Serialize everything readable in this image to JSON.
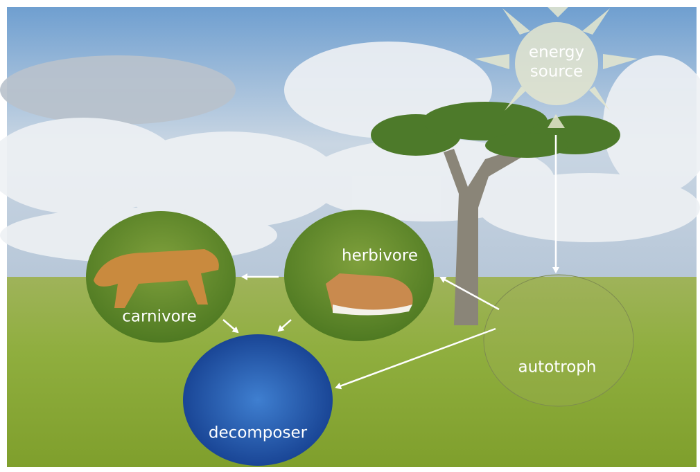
{
  "nodes": [
    {
      "lines": [
        "energy",
        "source"
      ]
    },
    {
      "label": "herbivore"
    },
    {
      "label": "carnivore"
    },
    {
      "label": "decomposer"
    },
    {
      "label": "autotroph"
    }
  ]
}
